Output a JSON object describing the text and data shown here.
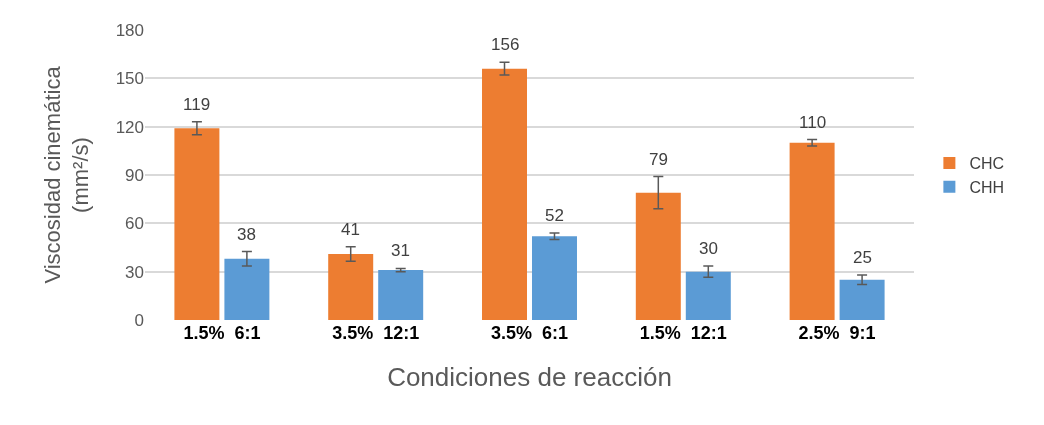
{
  "chart_data": {
    "type": "bar",
    "xlabel": "Condiciones de reacción",
    "ylabel": "Viscosidad cinemática\n(mm²/s)",
    "categories": [
      "1.5%  6:1",
      "3.5%  12:1",
      "3.5%  6:1",
      "1.5%  12:1",
      "2.5%  9:1"
    ],
    "series": [
      {
        "name": "CHC",
        "color": "#ed7d31",
        "values": [
          119,
          41,
          156,
          79,
          110
        ],
        "errors": [
          4,
          4.5,
          4,
          10,
          2
        ]
      },
      {
        "name": "CHH",
        "color": "#5b9bd5",
        "values": [
          38,
          31,
          52,
          30,
          25
        ],
        "errors": [
          4.5,
          1,
          2,
          3.5,
          3
        ]
      }
    ],
    "ylim": [
      0,
      180
    ],
    "yticks": [
      0,
      30,
      60,
      90,
      120,
      150,
      180
    ],
    "grid": "y",
    "legend": "right",
    "data_labels": true
  }
}
